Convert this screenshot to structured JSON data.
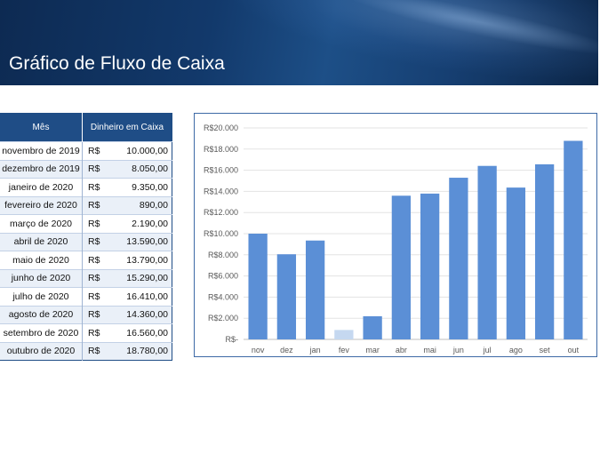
{
  "header": {
    "title": "Gráfico de Fluxo de Caixa"
  },
  "table": {
    "headers": [
      "Mês",
      "Dinheiro em Caixa"
    ],
    "currency": "R$",
    "rows": [
      {
        "month": "novembro de 2019",
        "value": "10.000,00"
      },
      {
        "month": "dezembro de 2019",
        "value": "8.050,00"
      },
      {
        "month": "janeiro de 2020",
        "value": "9.350,00"
      },
      {
        "month": "fevereiro de 2020",
        "value": "890,00"
      },
      {
        "month": "março de 2020",
        "value": "2.190,00"
      },
      {
        "month": "abril de 2020",
        "value": "13.590,00"
      },
      {
        "month": "maio de 2020",
        "value": "13.790,00"
      },
      {
        "month": "junho de 2020",
        "value": "15.290,00"
      },
      {
        "month": "julho de 2020",
        "value": "16.410,00"
      },
      {
        "month": "agosto de 2020",
        "value": "14.360,00"
      },
      {
        "month": "setembro de 2020",
        "value": "16.560,00"
      },
      {
        "month": "outubro de 2020",
        "value": "18.780,00"
      }
    ]
  },
  "chart_data": {
    "type": "bar",
    "categories": [
      "nov",
      "dez",
      "jan",
      "fev",
      "mar",
      "abr",
      "mai",
      "jun",
      "jul",
      "ago",
      "set",
      "out"
    ],
    "values": [
      10000,
      8050,
      9350,
      890,
      2190,
      13590,
      13790,
      15290,
      16410,
      14360,
      16560,
      18780
    ],
    "ylim": [
      0,
      20000
    ],
    "yticks": [
      "R$-",
      "R$2.000",
      "R$4.000",
      "R$6.000",
      "R$8.000",
      "R$10.000",
      "R$12.000",
      "R$14.000",
      "R$16.000",
      "R$18.000",
      "R$20.000"
    ],
    "grid": true,
    "bar_color": "#5b8fd6",
    "highlight_color": "#c5d8f0",
    "highlight_index": 3
  }
}
